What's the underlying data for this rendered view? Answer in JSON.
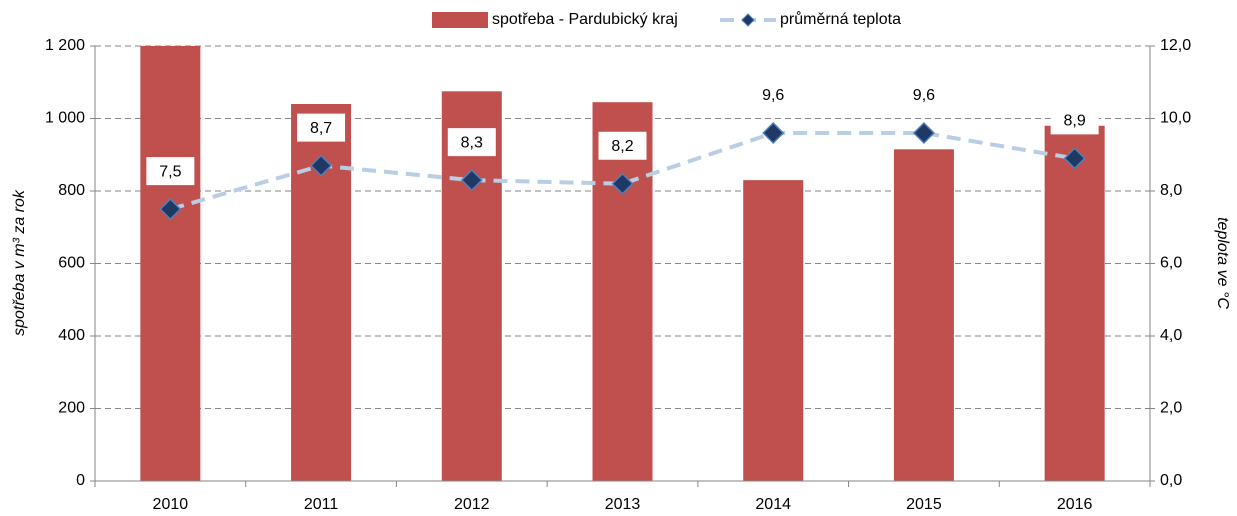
{
  "chart_data": {
    "type": "bar_line",
    "categories": [
      "2010",
      "2011",
      "2012",
      "2013",
      "2014",
      "2015",
      "2016"
    ],
    "series": [
      {
        "name": "spotřeba - Pardubický kraj",
        "type": "bar",
        "color": "#c0504d",
        "values": [
          1200,
          1040,
          1075,
          1045,
          830,
          915,
          980
        ]
      },
      {
        "name": "průměrná teplota",
        "type": "line",
        "axis": "y2",
        "color": "#b9cde5",
        "marker_color": "#1f3864",
        "values": [
          7.5,
          8.7,
          8.3,
          8.2,
          9.6,
          9.6,
          8.9
        ],
        "value_labels": [
          "7,5",
          "8,7",
          "8,3",
          "8,2",
          "9,6",
          "9,6",
          "8,9"
        ]
      }
    ],
    "ylabel": "spotřeba v m³ za rok",
    "y2label": "teplota ve °C",
    "ylim": [
      0,
      1200
    ],
    "yticks": [
      0,
      200,
      400,
      600,
      800,
      {
        "value": 1000,
        "label": "1 000"
      },
      {
        "value": 1200,
        "label": "1 200"
      }
    ],
    "y2lim": [
      0,
      12
    ],
    "y2ticks": [
      {
        "value": 0,
        "label": "0,0"
      },
      {
        "value": 2,
        "label": "2,0"
      },
      {
        "value": 4,
        "label": "4,0"
      },
      {
        "value": 6,
        "label": "6,0"
      },
      {
        "value": 8,
        "label": "8,0"
      },
      {
        "value": 10,
        "label": "10,0"
      },
      {
        "value": 12,
        "label": "12,0"
      }
    ],
    "grid": true,
    "legend": "top"
  }
}
